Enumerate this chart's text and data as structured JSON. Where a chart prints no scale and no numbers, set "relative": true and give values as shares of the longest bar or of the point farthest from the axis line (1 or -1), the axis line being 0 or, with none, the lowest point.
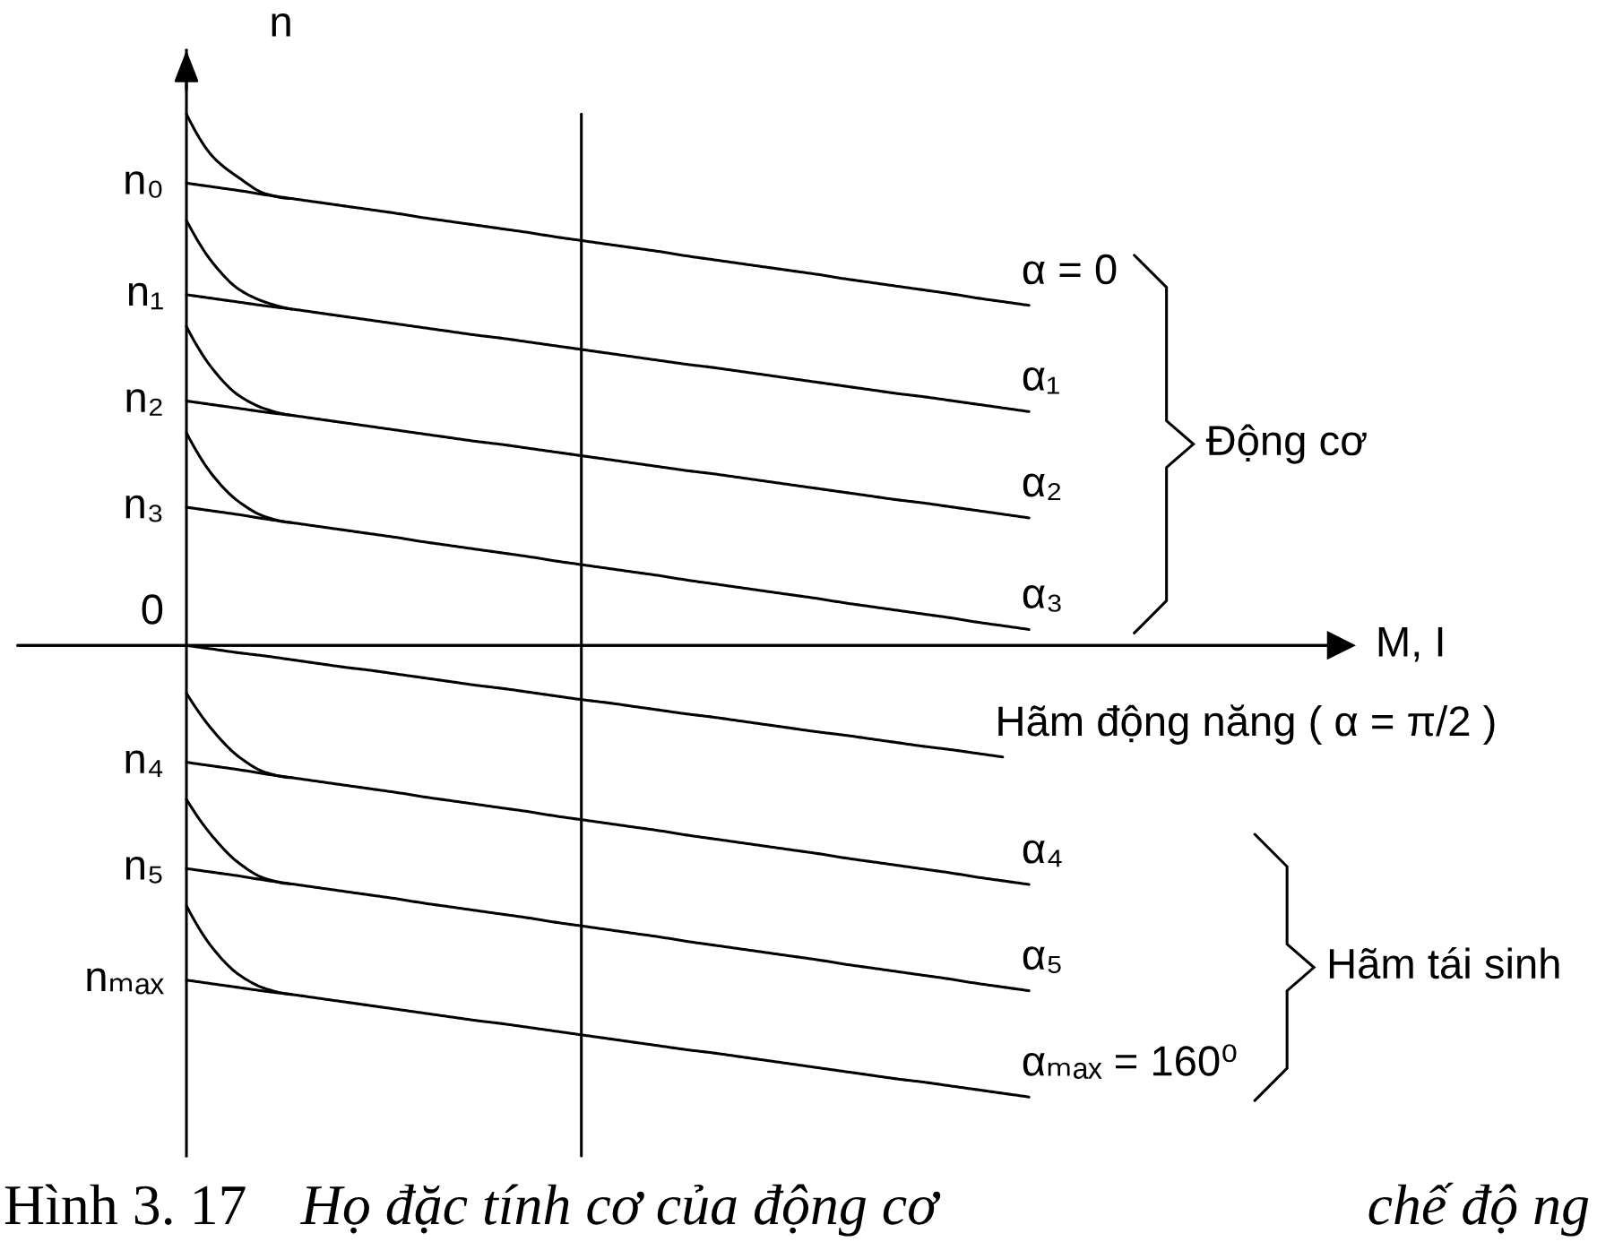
{
  "chart_data": {
    "type": "line",
    "relative": true,
    "ylabel": "n",
    "categories": [
      null,
      null,
      null,
      null,
      null,
      null,
      null,
      null,
      null,
      null,
      null,
      null,
      null,
      null,
      null,
      null,
      null,
      null,
      null,
      null,
      null,
      null,
      null,
      null,
      null,
      null,
      null,
      null,
      null,
      null,
      null,
      null,
      null
    ],
    "series": [
      {
        "name": "α = 0",
        "color": "#000000",
        "values": [
          0.87,
          0.863,
          0.856,
          0.848,
          0.841,
          0.834,
          0.827,
          0.82,
          0.813,
          0.805,
          0.798,
          0.791,
          0.784,
          0.777,
          0.769,
          0.762,
          0.755,
          0.748,
          0.741,
          0.733,
          0.726,
          0.719,
          0.712,
          0.705,
          0.698,
          0.69,
          0.683,
          0.676,
          0.669,
          0.662,
          0.654,
          0.647,
          0.64
        ]
      },
      {
        "color": "#000000",
        "values": [
          1.0,
          0.92,
          0.88,
          0.85,
          0.841,
          null,
          null,
          null,
          null,
          null,
          null,
          null,
          null,
          null,
          null,
          null,
          null,
          null,
          null,
          null,
          null,
          null,
          null,
          null,
          null,
          null,
          null,
          null,
          null,
          null,
          null,
          null,
          null
        ]
      },
      {
        "name": "α₁",
        "color": "#000000",
        "values": [
          0.66,
          0.653,
          0.646,
          0.639,
          0.633,
          0.626,
          0.619,
          0.612,
          0.605,
          0.598,
          0.591,
          0.584,
          0.578,
          0.571,
          0.564,
          0.557,
          0.55,
          0.543,
          0.536,
          0.529,
          0.523,
          0.516,
          0.509,
          0.502,
          0.495,
          0.488,
          0.481,
          0.474,
          0.468,
          0.461,
          0.454,
          0.447,
          0.44
        ]
      },
      {
        "color": "#000000",
        "values": [
          0.8,
          0.72,
          0.67,
          0.646,
          0.633,
          null,
          null,
          null,
          null,
          null,
          null,
          null,
          null,
          null,
          null,
          null,
          null,
          null,
          null,
          null,
          null,
          null,
          null,
          null,
          null,
          null,
          null,
          null,
          null,
          null,
          null,
          null,
          null
        ]
      },
      {
        "name": "α₂",
        "color": "#000000",
        "values": [
          0.46,
          0.453,
          0.446,
          0.439,
          0.433,
          0.426,
          0.419,
          0.412,
          0.405,
          0.398,
          0.391,
          0.384,
          0.378,
          0.371,
          0.364,
          0.357,
          0.35,
          0.343,
          0.336,
          0.329,
          0.323,
          0.316,
          0.309,
          0.302,
          0.295,
          0.288,
          0.281,
          0.274,
          0.268,
          0.261,
          0.254,
          0.247,
          0.24
        ]
      },
      {
        "color": "#000000",
        "values": [
          0.6,
          0.52,
          0.47,
          0.445,
          0.433,
          null,
          null,
          null,
          null,
          null,
          null,
          null,
          null,
          null,
          null,
          null,
          null,
          null,
          null,
          null,
          null,
          null,
          null,
          null,
          null,
          null,
          null,
          null,
          null,
          null,
          null,
          null,
          null
        ]
      },
      {
        "name": "α₃",
        "color": "#000000",
        "values": [
          0.26,
          0.253,
          0.246,
          0.238,
          0.231,
          0.224,
          0.217,
          0.21,
          0.203,
          0.195,
          0.188,
          0.181,
          0.174,
          0.167,
          0.159,
          0.152,
          0.145,
          0.138,
          0.131,
          0.123,
          0.116,
          0.109,
          0.102,
          0.095,
          0.088,
          0.08,
          0.073,
          0.066,
          0.059,
          0.052,
          0.044,
          0.037,
          0.03
        ]
      },
      {
        "color": "#000000",
        "values": [
          0.4,
          0.32,
          0.27,
          0.242,
          0.231,
          null,
          null,
          null,
          null,
          null,
          null,
          null,
          null,
          null,
          null,
          null,
          null,
          null,
          null,
          null,
          null,
          null,
          null,
          null,
          null,
          null,
          null,
          null,
          null,
          null,
          null,
          null,
          null
        ]
      },
      {
        "name": "Hãm động năng ( α = π/2 )",
        "color": "#000000",
        "values": [
          0.0,
          -0.007,
          -0.014,
          -0.02,
          -0.027,
          -0.034,
          -0.041,
          -0.047,
          -0.054,
          -0.061,
          -0.068,
          -0.075,
          -0.081,
          -0.088,
          -0.095,
          -0.102,
          -0.108,
          -0.115,
          -0.122,
          -0.129,
          -0.135,
          -0.142,
          -0.149,
          -0.156,
          -0.163,
          -0.169,
          -0.176,
          -0.183,
          -0.19,
          -0.196,
          -0.203,
          -0.21,
          null
        ]
      },
      {
        "name": "α₄",
        "color": "#000000",
        "values": [
          -0.22,
          -0.227,
          -0.234,
          -0.242,
          -0.249,
          -0.256,
          -0.263,
          -0.27,
          -0.277,
          -0.285,
          -0.292,
          -0.299,
          -0.306,
          -0.313,
          -0.321,
          -0.328,
          -0.335,
          -0.342,
          -0.349,
          -0.357,
          -0.364,
          -0.371,
          -0.378,
          -0.385,
          -0.392,
          -0.4,
          -0.407,
          -0.414,
          -0.421,
          -0.428,
          -0.436,
          -0.443,
          -0.45
        ]
      },
      {
        "color": "#000000",
        "values": [
          -0.09,
          -0.16,
          -0.21,
          -0.239,
          -0.249,
          null,
          null,
          null,
          null,
          null,
          null,
          null,
          null,
          null,
          null,
          null,
          null,
          null,
          null,
          null,
          null,
          null,
          null,
          null,
          null,
          null,
          null,
          null,
          null,
          null,
          null,
          null,
          null
        ]
      },
      {
        "name": "α₅",
        "color": "#000000",
        "values": [
          -0.42,
          -0.427,
          -0.434,
          -0.442,
          -0.449,
          -0.456,
          -0.463,
          -0.47,
          -0.477,
          -0.485,
          -0.492,
          -0.499,
          -0.506,
          -0.513,
          -0.521,
          -0.528,
          -0.535,
          -0.542,
          -0.549,
          -0.557,
          -0.564,
          -0.571,
          -0.578,
          -0.585,
          -0.592,
          -0.6,
          -0.607,
          -0.614,
          -0.621,
          -0.628,
          -0.636,
          -0.643,
          -0.65
        ]
      },
      {
        "color": "#000000",
        "values": [
          -0.29,
          -0.36,
          -0.41,
          -0.439,
          -0.449,
          null,
          null,
          null,
          null,
          null,
          null,
          null,
          null,
          null,
          null,
          null,
          null,
          null,
          null,
          null,
          null,
          null,
          null,
          null,
          null,
          null,
          null,
          null,
          null,
          null,
          null,
          null,
          null
        ]
      },
      {
        "name": "αₘₐₓ = 160⁰",
        "color": "#000000",
        "values": [
          -0.63,
          -0.637,
          -0.644,
          -0.651,
          -0.657,
          -0.664,
          -0.671,
          -0.678,
          -0.685,
          -0.692,
          -0.699,
          -0.706,
          -0.712,
          -0.719,
          -0.726,
          -0.733,
          -0.74,
          -0.747,
          -0.754,
          -0.761,
          -0.767,
          -0.774,
          -0.781,
          -0.788,
          -0.795,
          -0.802,
          -0.809,
          -0.816,
          -0.822,
          -0.829,
          -0.836,
          -0.843,
          -0.85
        ]
      },
      {
        "color": "#000000",
        "values": [
          -0.49,
          -0.57,
          -0.62,
          -0.646,
          -0.657,
          null,
          null,
          null,
          null,
          null,
          null,
          null,
          null,
          null,
          null,
          null,
          null,
          null,
          null,
          null,
          null,
          null,
          null,
          null,
          null,
          null,
          null,
          null,
          null,
          null,
          null,
          null,
          null
        ]
      }
    ],
    "annotations": [
      "n₀",
      "n₁",
      "n₂",
      "n₃",
      "0",
      "n₄",
      "n₅",
      "nₘₐₓ",
      "M, I",
      "Động cơ",
      "Hãm tái sinh",
      "Hình 3. 17",
      "Họ đặc tính cơ của động cơ",
      "chế độ ng"
    ]
  }
}
